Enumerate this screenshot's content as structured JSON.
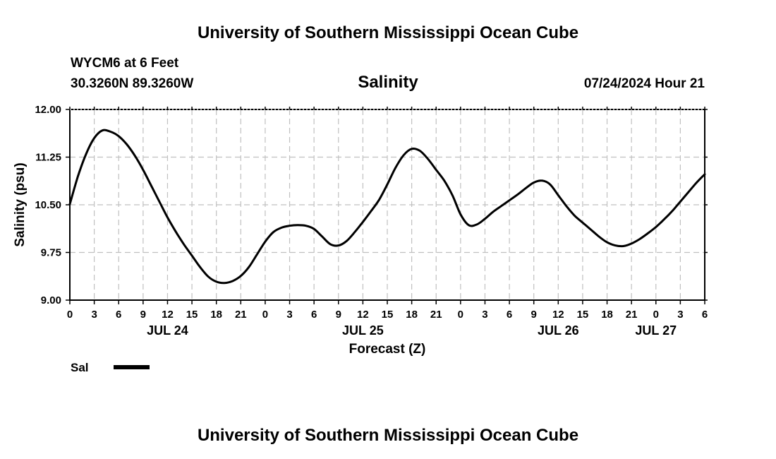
{
  "header": {
    "title": "University of Southern Mississippi Ocean Cube",
    "station": "WYCM6 at 6 Feet",
    "coords": "30.3260N  89.3260W",
    "variable": "Salinity",
    "datetime": "07/24/2024 Hour 21"
  },
  "footer": {
    "title": "University of Southern Mississippi Ocean Cube"
  },
  "legend": {
    "label": "Sal"
  },
  "colors": {
    "line": "#000000",
    "grid": "#c0c0c0",
    "axis": "#000000"
  },
  "chart_data": {
    "type": "line",
    "title": "Salinity",
    "xlabel": "Forecast (Z)",
    "ylabel": "Salinity (psu)",
    "xlim": [
      0,
      78
    ],
    "ylim": [
      9.0,
      12.0
    ],
    "yticks": [
      "12.00",
      "11.25",
      "10.50",
      "9.75",
      "9.00"
    ],
    "ytick_values": [
      12.0,
      11.25,
      10.5,
      9.75,
      9.0
    ],
    "xtick_labels": [
      "0",
      "3",
      "6",
      "9",
      "12",
      "15",
      "18",
      "21",
      "0",
      "3",
      "6",
      "9",
      "12",
      "15",
      "18",
      "21",
      "0",
      "3",
      "6",
      "9",
      "12",
      "15",
      "18",
      "21",
      "0",
      "3",
      "6"
    ],
    "date_labels": [
      {
        "hour": 12,
        "label": "JUL 24"
      },
      {
        "hour": 36,
        "label": "JUL 25"
      },
      {
        "hour": 60,
        "label": "JUL 26"
      },
      {
        "hour": 72,
        "label": "JUL 27"
      }
    ],
    "grid": true,
    "series": [
      {
        "name": "Sal",
        "x": [
          0,
          1,
          2,
          3,
          4,
          5,
          6,
          7,
          8,
          9,
          10,
          11,
          12,
          13,
          14,
          15,
          16,
          17,
          18,
          19,
          20,
          21,
          22,
          23,
          24,
          25,
          26,
          27,
          28,
          29,
          30,
          31,
          32,
          33,
          34,
          35,
          36,
          37,
          38,
          39,
          40,
          41,
          42,
          43,
          44,
          45,
          46,
          47,
          48,
          49,
          50,
          51,
          52,
          53,
          54,
          55,
          56,
          57,
          58,
          59,
          60,
          61,
          62,
          63,
          64,
          65,
          66,
          67,
          68,
          69,
          70,
          71,
          72,
          73,
          74,
          75,
          76,
          77,
          78
        ],
        "values": [
          10.51,
          10.95,
          11.3,
          11.55,
          11.67,
          11.65,
          11.58,
          11.45,
          11.27,
          11.05,
          10.8,
          10.55,
          10.3,
          10.08,
          9.88,
          9.7,
          9.52,
          9.37,
          9.29,
          9.27,
          9.3,
          9.38,
          9.52,
          9.72,
          9.92,
          10.07,
          10.14,
          10.17,
          10.18,
          10.17,
          10.12,
          10.0,
          9.88,
          9.86,
          9.93,
          10.07,
          10.23,
          10.4,
          10.58,
          10.82,
          11.08,
          11.28,
          11.38,
          11.35,
          11.22,
          11.05,
          10.88,
          10.65,
          10.35,
          10.18,
          10.19,
          10.28,
          10.39,
          10.48,
          10.57,
          10.66,
          10.76,
          10.85,
          10.88,
          10.82,
          10.65,
          10.48,
          10.33,
          10.22,
          10.11,
          10.0,
          9.91,
          9.86,
          9.85,
          9.89,
          9.96,
          10.05,
          10.15,
          10.27,
          10.4,
          10.55,
          10.7,
          10.85,
          10.98
        ]
      }
    ]
  }
}
